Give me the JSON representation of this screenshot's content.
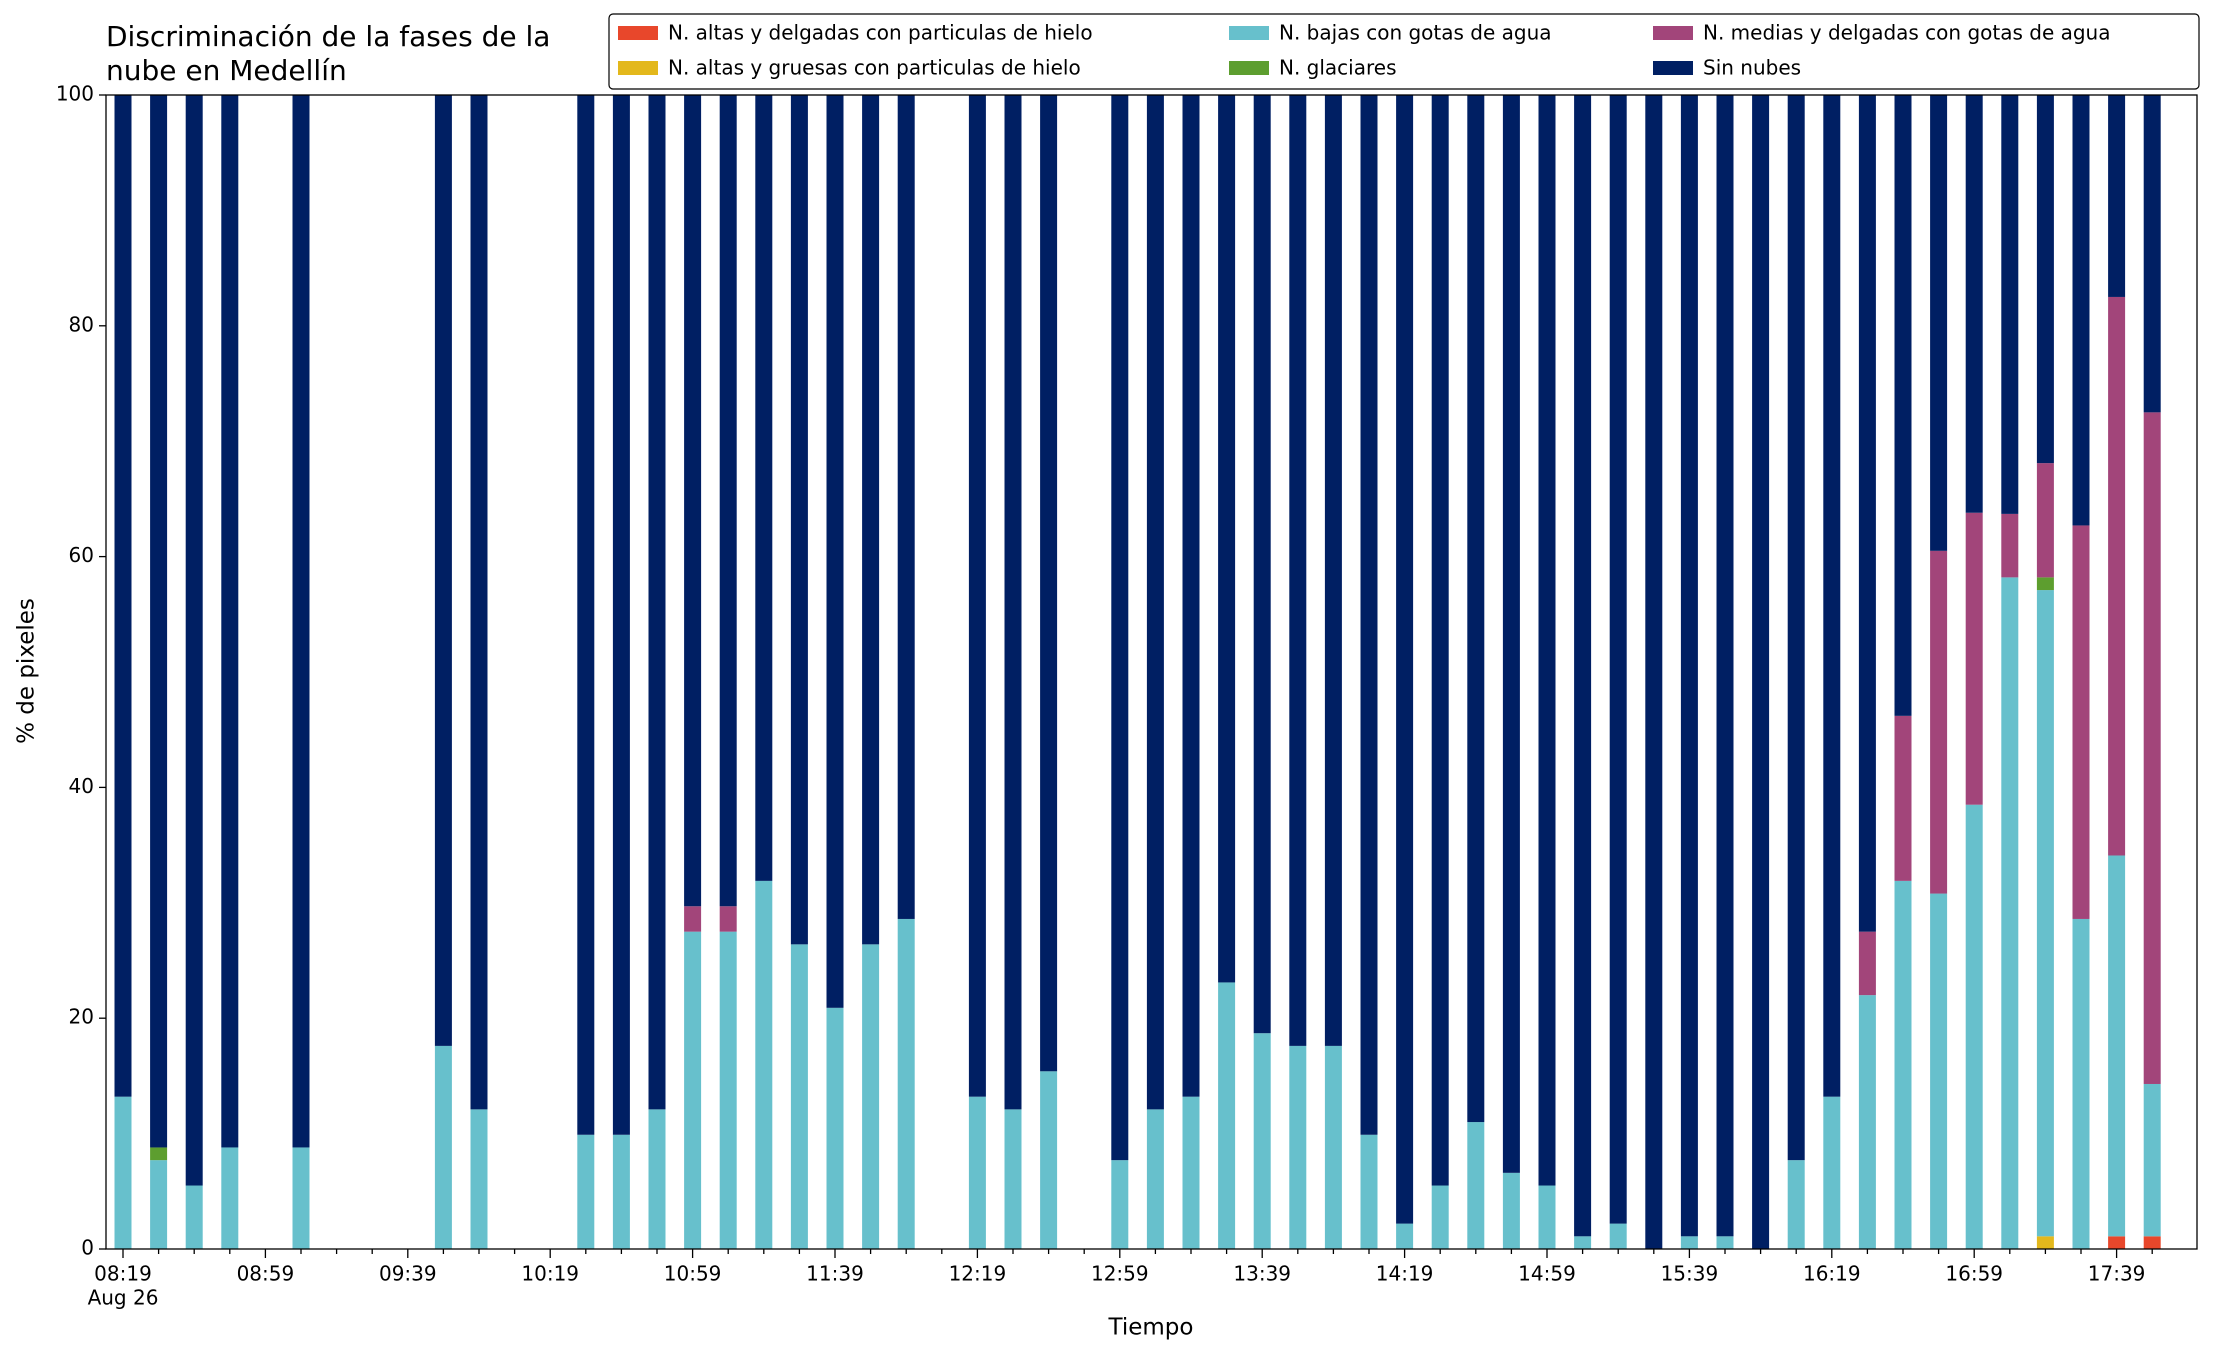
{
  "chart_data": {
    "type": "stacked_bar",
    "title": "Discriminación de la fases de la\nnube en Medellín",
    "x_label": "Tiempo",
    "y_label": "% de pixeles",
    "x_date_label": "Aug 26",
    "categories": [
      "08:19",
      null,
      null,
      null,
      "08:59",
      null,
      null,
      null,
      "09:39",
      null,
      null,
      null,
      "10:19",
      null,
      null,
      null,
      "10:59",
      null,
      null,
      null,
      "11:39",
      null,
      null,
      null,
      "12:19",
      null,
      null,
      null,
      "12:59",
      null,
      null,
      null,
      "13:39",
      null,
      null,
      null,
      "14:19",
      null,
      null,
      null,
      "14:59",
      null,
      null,
      null,
      "15:39",
      null,
      null,
      null,
      "16:19",
      null,
      null,
      null,
      "16:59",
      null,
      null,
      null,
      "17:39",
      null
    ],
    "ylim": [
      0,
      100
    ],
    "yticks": [
      0,
      20,
      40,
      60,
      80,
      100
    ],
    "grid": false,
    "legend": "top",
    "series": [
      {
        "name": "N. altas y delgadas con particulas de hielo",
        "color": "#e8472b",
        "values": [
          0,
          0,
          0,
          0,
          null,
          0,
          null,
          null,
          null,
          0,
          0,
          null,
          null,
          0,
          0,
          0,
          0,
          0,
          0,
          0,
          0,
          0,
          0,
          null,
          0,
          0,
          0,
          null,
          0,
          0,
          0,
          0,
          0,
          0,
          0,
          0,
          0,
          0,
          0,
          0,
          0,
          0,
          0,
          0,
          0,
          0,
          0,
          0,
          0,
          0,
          0,
          0,
          0,
          0,
          0,
          0,
          1.1,
          1.1
        ]
      },
      {
        "name": "N. altas y gruesas con particulas de hielo",
        "color": "#e3b81c",
        "values": [
          0,
          0,
          0,
          0,
          null,
          0,
          null,
          null,
          null,
          0,
          0,
          null,
          null,
          0,
          0,
          0,
          0,
          0,
          0,
          0,
          0,
          0,
          0,
          null,
          0,
          0,
          0,
          null,
          0,
          0,
          0,
          0,
          0,
          0,
          0,
          0,
          0,
          0,
          0,
          0,
          0,
          0,
          0,
          0,
          0,
          0,
          0,
          0,
          0,
          0,
          0,
          0,
          0,
          0,
          1.1,
          0,
          0,
          0
        ]
      },
      {
        "name": "N. bajas con gotas de agua",
        "color": "#67c0cc",
        "values": [
          13.2,
          7.7,
          5.5,
          8.8,
          null,
          8.8,
          null,
          null,
          null,
          17.6,
          12.1,
          null,
          null,
          9.9,
          9.9,
          12.1,
          27.5,
          27.5,
          31.9,
          26.4,
          20.9,
          26.4,
          28.6,
          null,
          13.2,
          12.1,
          15.4,
          null,
          7.7,
          12.1,
          13.2,
          23.1,
          18.7,
          17.6,
          17.6,
          9.9,
          2.2,
          5.5,
          11.0,
          6.6,
          5.5,
          1.1,
          2.2,
          0,
          1.1,
          1.1,
          0,
          7.7,
          13.2,
          22.0,
          31.9,
          30.8,
          38.5,
          58.2,
          56.0,
          28.6,
          33.0,
          13.2
        ]
      },
      {
        "name": "N. glaciares",
        "color": "#5d9e2f",
        "values": [
          0,
          1.1,
          0,
          0,
          null,
          0,
          null,
          null,
          null,
          0,
          0,
          null,
          null,
          0,
          0,
          0,
          0,
          0,
          0,
          0,
          0,
          0,
          0,
          null,
          0,
          0,
          0,
          null,
          0,
          0,
          0,
          0,
          0,
          0,
          0,
          0,
          0,
          0,
          0,
          0,
          0,
          0,
          0,
          0,
          0,
          0,
          0,
          0,
          0,
          0,
          0,
          0,
          0,
          0,
          1.1,
          0,
          0,
          0
        ]
      },
      {
        "name": "N. medias y delgadas con gotas de agua",
        "color": "#a2457a",
        "values": [
          0,
          0,
          0,
          0,
          null,
          0,
          null,
          null,
          null,
          0,
          0,
          null,
          null,
          0,
          0,
          0,
          2.2,
          2.2,
          0,
          0,
          0,
          0,
          0,
          null,
          0,
          0,
          0,
          null,
          0,
          0,
          0,
          0,
          0,
          0,
          0,
          0,
          0,
          0,
          0,
          0,
          0,
          0,
          0,
          0,
          0,
          0,
          0,
          0,
          0,
          5.5,
          14.3,
          29.7,
          25.3,
          5.5,
          9.9,
          34.1,
          48.4,
          58.2
        ]
      },
      {
        "name": "Sin nubes",
        "color": "#001f63",
        "values": [
          86.8,
          91.2,
          94.5,
          91.2,
          null,
          91.2,
          null,
          null,
          null,
          82.4,
          87.9,
          null,
          null,
          90.1,
          90.1,
          87.9,
          70.3,
          70.3,
          68.1,
          73.6,
          79.1,
          73.6,
          71.4,
          null,
          86.8,
          87.9,
          84.6,
          null,
          92.3,
          87.9,
          86.8,
          76.9,
          81.3,
          82.4,
          82.4,
          90.1,
          97.8,
          94.5,
          89.0,
          93.4,
          94.5,
          98.9,
          97.8,
          100,
          98.9,
          98.9,
          100,
          92.3,
          86.8,
          72.5,
          53.8,
          39.5,
          36.2,
          36.3,
          31.9,
          37.3,
          17.5,
          27.5
        ]
      }
    ]
  }
}
